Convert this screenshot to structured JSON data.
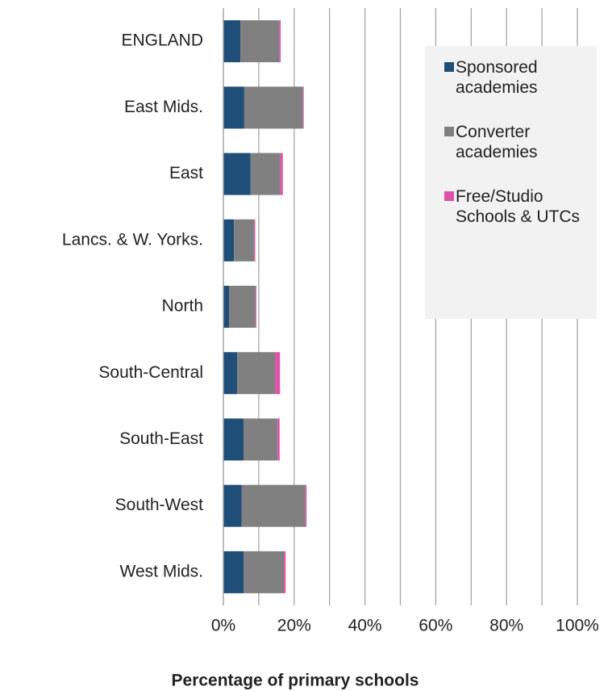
{
  "chart_data": {
    "type": "stacked_barh",
    "categories": [
      "ENGLAND",
      "East Mids.",
      "East",
      "Lancs. & W. Yorks.",
      "North",
      "South-Central",
      "South-East",
      "South-West",
      "West Mids."
    ],
    "series": [
      {
        "name": "Sponsored academies",
        "color": "#1f4e79",
        "values": [
          4.8,
          5.9,
          7.7,
          3.0,
          1.6,
          3.9,
          5.7,
          5.2,
          5.7
        ]
      },
      {
        "name": "Converter academies",
        "color": "#808080",
        "values": [
          11.0,
          16.6,
          8.4,
          5.7,
          7.5,
          10.7,
          9.6,
          18.0,
          11.4
        ]
      },
      {
        "name": "Free/Studio Schools & UTCs",
        "color": "#e052a9",
        "values": [
          0.4,
          0.2,
          0.7,
          0.3,
          0.2,
          1.4,
          0.6,
          0.3,
          0.5
        ]
      }
    ],
    "xlabel": "Percentage of primary schools",
    "xlim": [
      0,
      100
    ],
    "xticks": [
      {
        "value": 0,
        "label": "0%"
      },
      {
        "value": 20,
        "label": "20%"
      },
      {
        "value": 40,
        "label": "40%"
      },
      {
        "value": 60,
        "label": "60%"
      },
      {
        "value": 80,
        "label": "80%"
      },
      {
        "value": 100,
        "label": "100%"
      }
    ],
    "xminorticks": [
      10,
      30,
      50,
      70,
      90
    ],
    "grid": true
  }
}
